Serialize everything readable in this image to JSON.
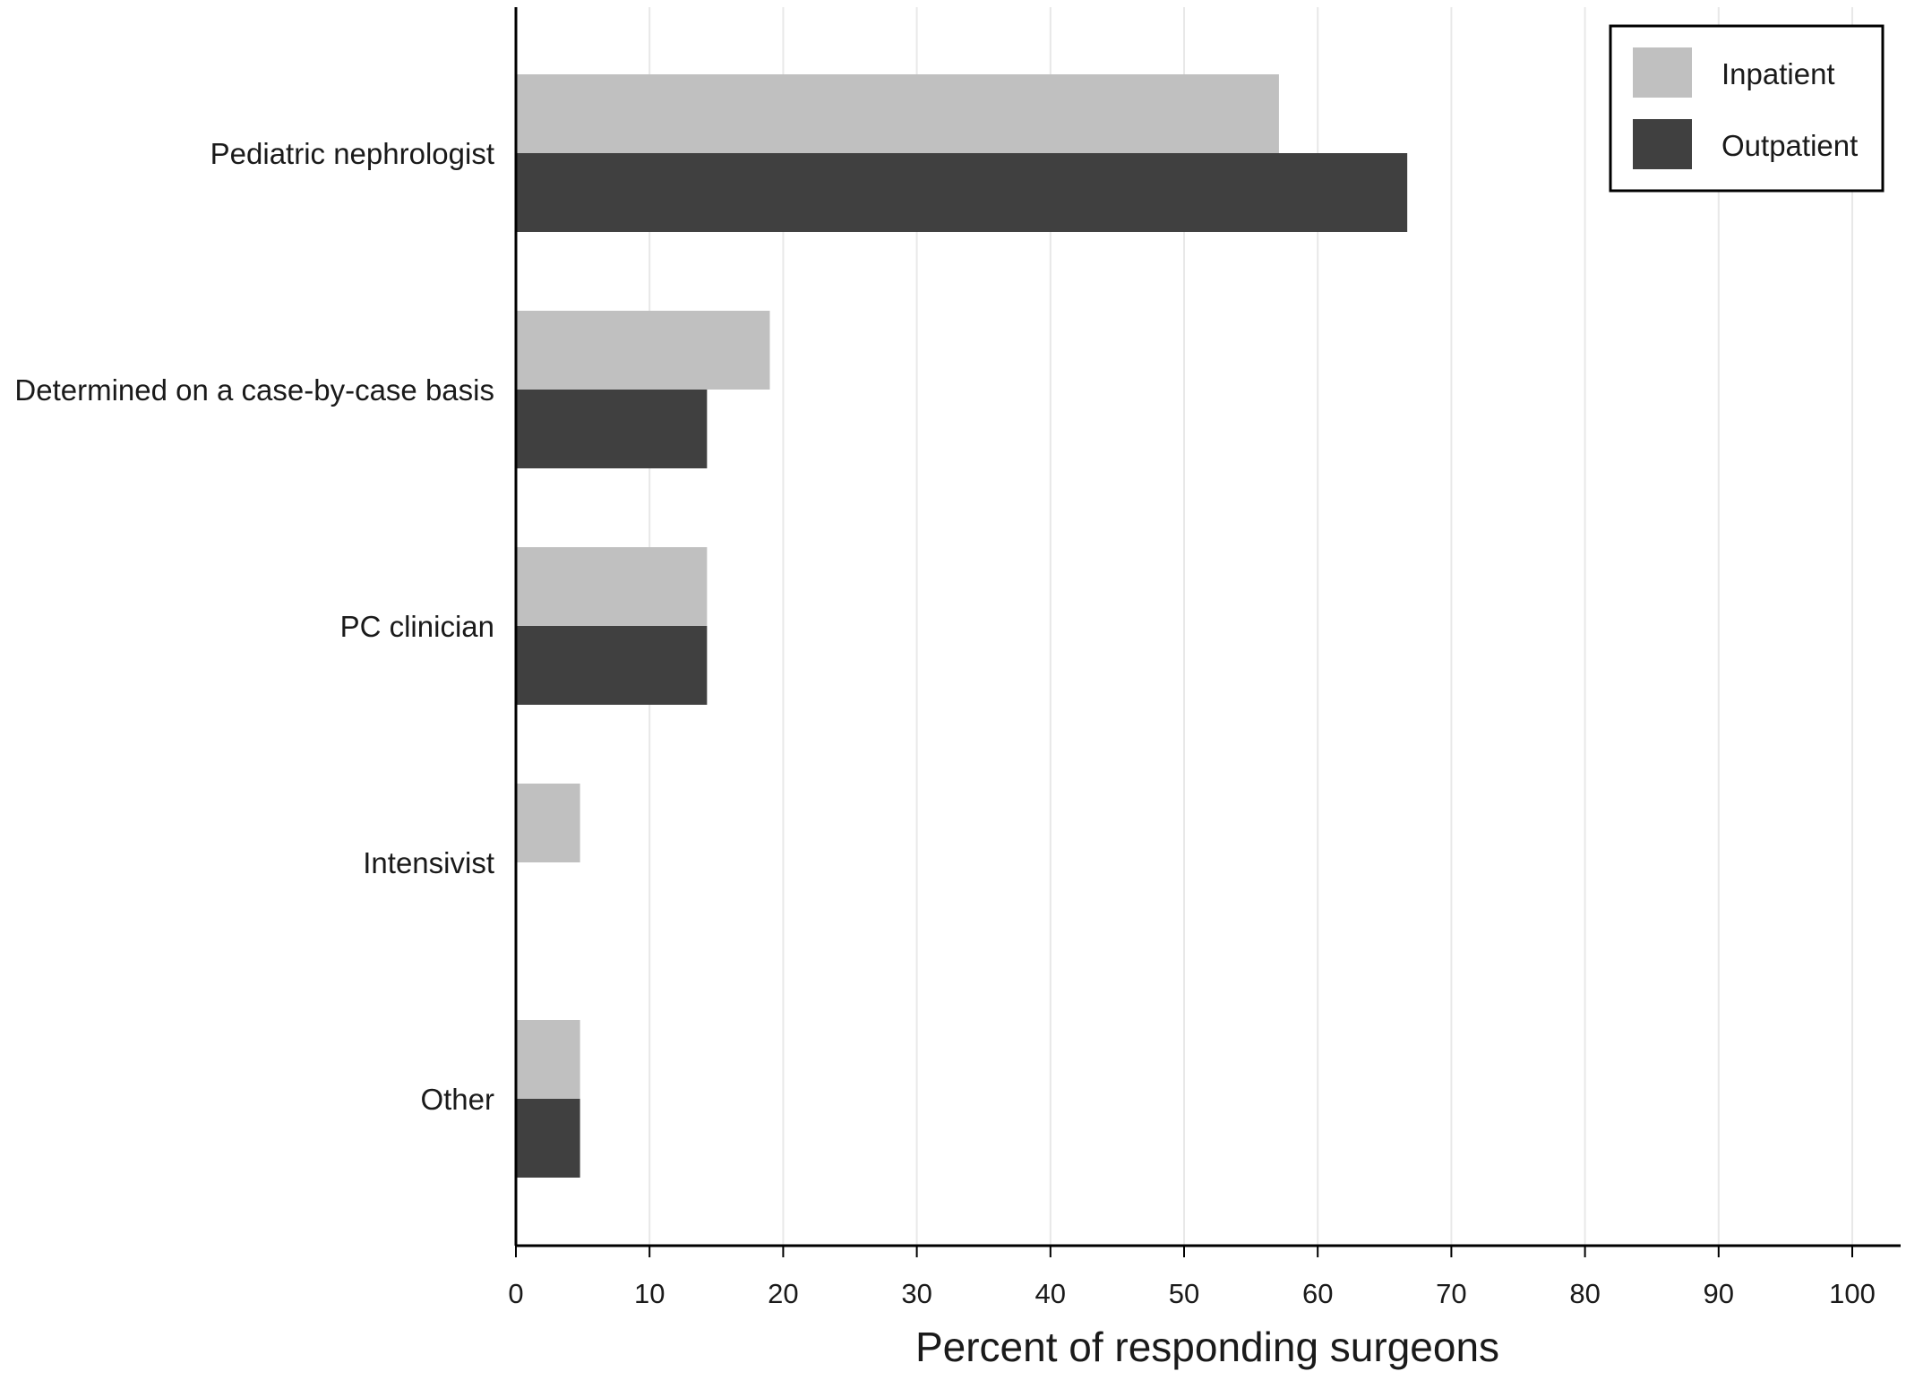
{
  "chart_data": {
    "type": "bar",
    "orientation": "horizontal",
    "categories": [
      "Pediatric nephrologist",
      "Determined on a case-by-case basis",
      "PC clinician",
      "Intensivist",
      "Other"
    ],
    "series": [
      {
        "name": "Inpatient",
        "color": "#c0c0c0",
        "values": [
          57.1,
          19.0,
          14.3,
          4.8,
          4.8
        ]
      },
      {
        "name": "Outpatient",
        "color": "#404040",
        "values": [
          66.7,
          14.3,
          14.3,
          0,
          4.8
        ]
      }
    ],
    "title": "",
    "xlabel": "Percent of responding surgeons",
    "ylabel": "",
    "xlim": [
      0,
      100
    ],
    "xticks": [
      "0",
      "10",
      "20",
      "30",
      "40",
      "50",
      "60",
      "70",
      "80",
      "90",
      "100"
    ],
    "grid": "vertical",
    "legend_position": "top-right",
    "colors": {
      "gridline": "#e8e8e8",
      "axis": "#000000"
    }
  }
}
